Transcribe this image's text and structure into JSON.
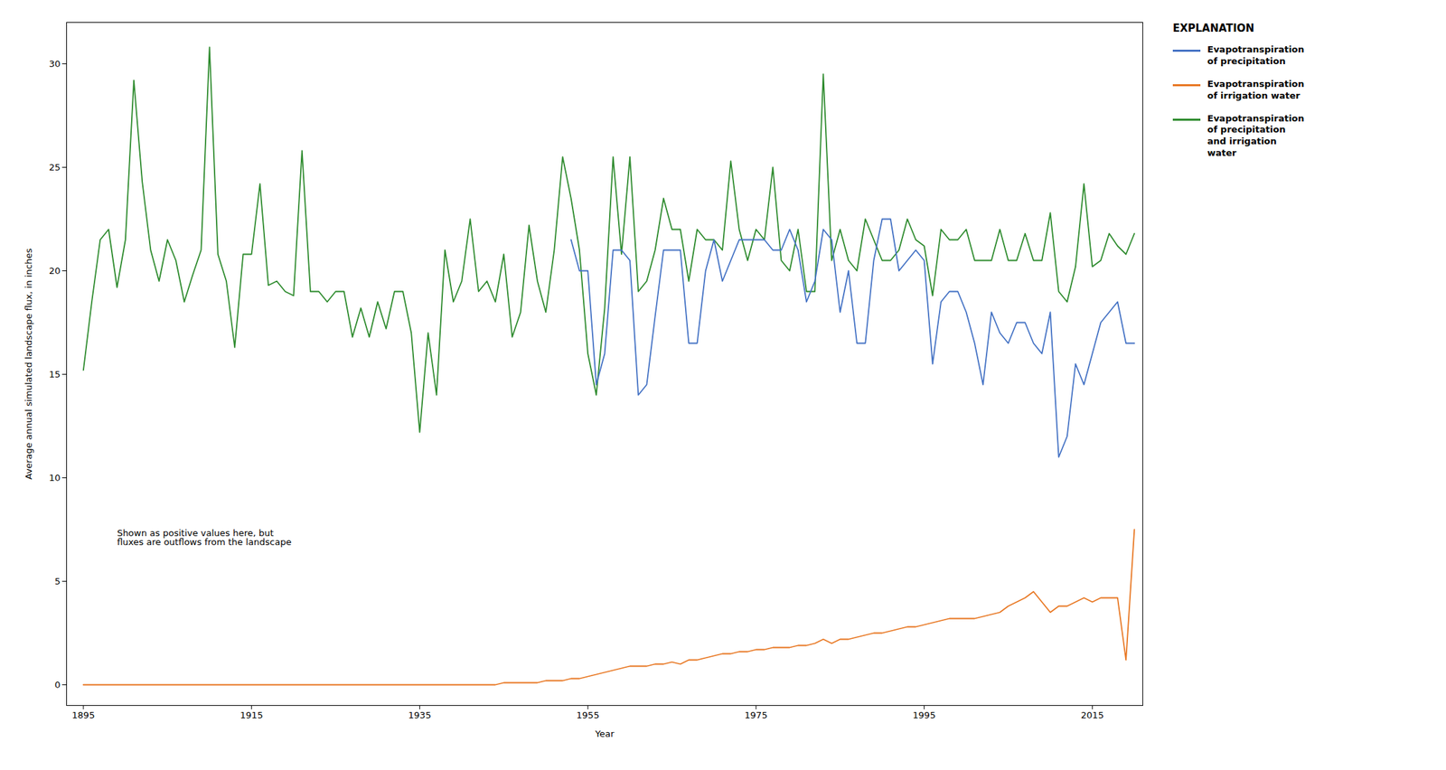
{
  "chart_data": {
    "type": "line",
    "title": "",
    "xlabel": "Year",
    "ylabel": "Average annual simulated landscape flux, in inches",
    "xlim": [
      1893,
      2021
    ],
    "ylim": [
      -1,
      32
    ],
    "xticks": [
      1895,
      1915,
      1935,
      1955,
      1975,
      1995,
      2015
    ],
    "yticks": [
      0,
      5,
      10,
      15,
      20,
      25,
      30
    ],
    "grid": false,
    "legend": "right",
    "legend_title": "EXPLANATION",
    "annotations": [
      {
        "text": "Shown as positive values here, but\nfluxes are outflows from the landscape",
        "x": 1899,
        "y": 7.5
      }
    ],
    "series": [
      {
        "name": "Evapotranspiration\nof precipitation",
        "color": "#4472C4",
        "x": [
          1953,
          1954,
          1955,
          1956,
          1957,
          1958,
          1959,
          1960,
          1961,
          1962,
          1963,
          1964,
          1965,
          1966,
          1967,
          1968,
          1969,
          1970,
          1971,
          1972,
          1973,
          1974,
          1975,
          1976,
          1977,
          1978,
          1979,
          1980,
          1981,
          1982,
          1983,
          1984,
          1985,
          1986,
          1987,
          1988,
          1989,
          1990,
          1991,
          1992,
          1993,
          1994,
          1995,
          1996,
          1997,
          1998,
          1999,
          2000,
          2001,
          2002,
          2003,
          2004,
          2005,
          2006,
          2007,
          2008,
          2009,
          2010,
          2011,
          2012,
          2013,
          2014,
          2015,
          2016,
          2017,
          2018,
          2019,
          2020
        ],
        "values": [
          21.5,
          20.0,
          20.0,
          14.5,
          16.0,
          21.0,
          21.0,
          20.5,
          14.0,
          14.5,
          17.8,
          21.0,
          21.0,
          21.0,
          16.5,
          16.5,
          20.0,
          21.5,
          19.5,
          20.5,
          21.5,
          21.5,
          21.5,
          21.5,
          21.0,
          21.0,
          22.0,
          21.0,
          18.5,
          19.5,
          22.0,
          21.5,
          18.0,
          20.0,
          16.5,
          16.5,
          20.5,
          22.5,
          22.5,
          20.0,
          20.5,
          21.0,
          20.5,
          15.5,
          18.5,
          19.0,
          19.0,
          18.0,
          16.5,
          14.5,
          18.0,
          17.0,
          16.5,
          17.5,
          17.5,
          16.5,
          16.0,
          18.0,
          11.0,
          12.0,
          15.5,
          14.5,
          16.0,
          17.5,
          18.0,
          18.5,
          16.5,
          16.5
        ]
      },
      {
        "name": "Evapotranspiration\nof irrigation water",
        "color": "#E87722",
        "x": [
          1895,
          1896,
          1897,
          1898,
          1899,
          1900,
          1901,
          1902,
          1903,
          1904,
          1905,
          1906,
          1907,
          1908,
          1909,
          1910,
          1911,
          1912,
          1913,
          1914,
          1915,
          1916,
          1917,
          1918,
          1919,
          1920,
          1921,
          1922,
          1923,
          1924,
          1925,
          1926,
          1927,
          1928,
          1929,
          1930,
          1931,
          1932,
          1933,
          1934,
          1935,
          1936,
          1937,
          1938,
          1939,
          1940,
          1941,
          1942,
          1943,
          1944,
          1945,
          1946,
          1947,
          1948,
          1949,
          1950,
          1951,
          1952,
          1953,
          1954,
          1955,
          1956,
          1957,
          1958,
          1959,
          1960,
          1961,
          1962,
          1963,
          1964,
          1965,
          1966,
          1967,
          1968,
          1969,
          1970,
          1971,
          1972,
          1973,
          1974,
          1975,
          1976,
          1977,
          1978,
          1979,
          1980,
          1981,
          1982,
          1983,
          1984,
          1985,
          1986,
          1987,
          1988,
          1989,
          1990,
          1991,
          1992,
          1993,
          1994,
          1995,
          1996,
          1997,
          1998,
          1999,
          2000,
          2001,
          2002,
          2003,
          2004,
          2005,
          2006,
          2007,
          2008,
          2009,
          2010,
          2011,
          2012,
          2013,
          2014,
          2015,
          2016,
          2017,
          2018,
          2019,
          2020
        ],
        "values": [
          0.0,
          0.0,
          0.0,
          0.0,
          0.0,
          0.0,
          0.0,
          0.0,
          0.0,
          0.0,
          0.0,
          0.0,
          0.0,
          0.0,
          0.0,
          0.0,
          0.0,
          0.0,
          0.0,
          0.0,
          0.0,
          0.0,
          0.0,
          0.0,
          0.0,
          0.0,
          0.0,
          0.0,
          0.0,
          0.0,
          0.0,
          0.0,
          0.0,
          0.0,
          0.0,
          0.0,
          0.0,
          0.0,
          0.0,
          0.0,
          0.0,
          0.0,
          0.0,
          0.0,
          0.0,
          0.0,
          0.0,
          0.0,
          0.0,
          0.0,
          0.1,
          0.1,
          0.1,
          0.1,
          0.1,
          0.2,
          0.2,
          0.2,
          0.3,
          0.3,
          0.4,
          0.5,
          0.6,
          0.7,
          0.8,
          0.9,
          0.9,
          0.9,
          1.0,
          1.0,
          1.1,
          1.0,
          1.2,
          1.2,
          1.3,
          1.4,
          1.5,
          1.5,
          1.6,
          1.6,
          1.7,
          1.7,
          1.8,
          1.8,
          1.8,
          1.9,
          1.9,
          2.0,
          2.2,
          2.0,
          2.2,
          2.2,
          2.3,
          2.4,
          2.5,
          2.5,
          2.6,
          2.7,
          2.8,
          2.8,
          2.9,
          3.0,
          3.1,
          3.2,
          3.2,
          3.2,
          3.2,
          3.3,
          3.4,
          3.5,
          3.8,
          4.0,
          4.2,
          4.5,
          4.0,
          3.5,
          3.8,
          3.8,
          4.0,
          4.2,
          4.0,
          4.2,
          4.2,
          4.2,
          1.2,
          7.5
        ]
      },
      {
        "name": "Evapotranspiration\nof precipitation\nand irrigation\nwater",
        "color": "#2E8B2E",
        "x": [
          1895,
          1896,
          1897,
          1898,
          1899,
          1900,
          1901,
          1902,
          1903,
          1904,
          1905,
          1906,
          1907,
          1908,
          1909,
          1910,
          1911,
          1912,
          1913,
          1914,
          1915,
          1916,
          1917,
          1918,
          1919,
          1920,
          1921,
          1922,
          1923,
          1924,
          1925,
          1926,
          1927,
          1928,
          1929,
          1930,
          1931,
          1932,
          1933,
          1934,
          1935,
          1936,
          1937,
          1938,
          1939,
          1940,
          1941,
          1942,
          1943,
          1944,
          1945,
          1946,
          1947,
          1948,
          1949,
          1950,
          1951,
          1952,
          1953,
          1954,
          1955,
          1956,
          1957,
          1958,
          1959,
          1960,
          1961,
          1962,
          1963,
          1964,
          1965,
          1966,
          1967,
          1968,
          1969,
          1970,
          1971,
          1972,
          1973,
          1974,
          1975,
          1976,
          1977,
          1978,
          1979,
          1980,
          1981,
          1982,
          1983,
          1984,
          1985,
          1986,
          1987,
          1988,
          1989,
          1990,
          1991,
          1992,
          1993,
          1994,
          1995,
          1996,
          1997,
          1998,
          1999,
          2000,
          2001,
          2002,
          2003,
          2004,
          2005,
          2006,
          2007,
          2008,
          2009,
          2010,
          2011,
          2012,
          2013,
          2014,
          2015,
          2016,
          2017,
          2018,
          2019,
          2020
        ],
        "values": [
          15.2,
          18.5,
          21.5,
          22.0,
          19.2,
          21.5,
          29.2,
          24.3,
          21.0,
          19.5,
          21.5,
          20.5,
          18.5,
          19.8,
          21.0,
          30.8,
          20.8,
          19.5,
          16.3,
          20.8,
          20.8,
          24.2,
          19.3,
          19.5,
          19.0,
          18.8,
          25.8,
          19.0,
          19.0,
          18.5,
          19.0,
          19.0,
          16.8,
          18.2,
          16.8,
          18.5,
          17.2,
          19.0,
          19.0,
          17.0,
          12.2,
          17.0,
          14.0,
          21.0,
          18.5,
          19.5,
          22.5,
          19.0,
          19.5,
          18.5,
          20.8,
          16.8,
          18.0,
          22.2,
          19.5,
          18.0,
          21.0,
          25.5,
          23.5,
          21.0,
          16.0,
          14.0,
          18.2,
          25.5,
          20.8,
          25.5,
          19.0,
          19.5,
          21.0,
          23.5,
          22.0,
          22.0,
          19.5,
          22.0,
          21.5,
          21.5,
          21.0,
          25.3,
          22.0,
          20.5,
          22.0,
          21.5,
          25.0,
          20.5,
          20.0,
          22.0,
          19.0,
          19.0,
          29.5,
          20.5,
          22.0,
          20.5,
          20.0,
          22.5,
          21.5,
          20.5,
          20.5,
          21.0,
          22.5,
          21.5,
          21.2,
          18.8,
          22.0,
          21.5,
          21.5,
          22.0,
          20.5,
          20.5,
          20.5,
          22.0,
          20.5,
          20.5,
          21.8,
          20.5,
          20.5,
          22.8,
          19.0,
          18.5,
          20.2,
          24.2,
          20.2,
          20.5,
          21.8,
          21.2,
          20.8,
          21.8
        ]
      }
    ]
  }
}
